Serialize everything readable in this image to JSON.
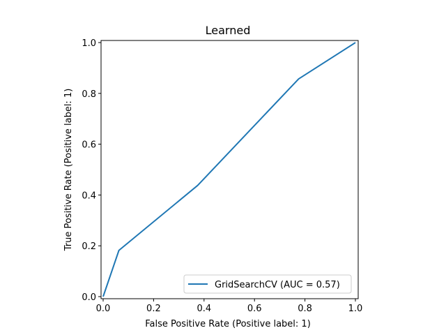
{
  "chart_data": {
    "type": "line",
    "title": "Learned",
    "xlabel": "False Positive Rate (Positive label: 1)",
    "ylabel": "True Positive Rate (Positive label: 1)",
    "xlim": [
      0,
      1
    ],
    "ylim": [
      0,
      1
    ],
    "x_ticks": [
      0.0,
      0.2,
      0.4,
      0.6,
      0.8,
      1.0
    ],
    "y_ticks": [
      0.0,
      0.2,
      0.4,
      0.6,
      0.8,
      1.0
    ],
    "x_tick_labels": [
      "0.0",
      "0.2",
      "0.4",
      "0.6",
      "0.8",
      "1.0"
    ],
    "y_tick_labels": [
      "0.0",
      "0.2",
      "0.4",
      "0.6",
      "0.8",
      "1.0"
    ],
    "grid": false,
    "legend_position": "lower-right",
    "series": [
      {
        "name": "GridSearchCV (AUC = 0.57)",
        "color": "#1f77b4",
        "x": [
          0.0,
          0.0625,
          0.375,
          0.775,
          1.0
        ],
        "y": [
          0.0,
          0.182,
          0.438,
          0.857,
          1.0
        ]
      }
    ]
  }
}
